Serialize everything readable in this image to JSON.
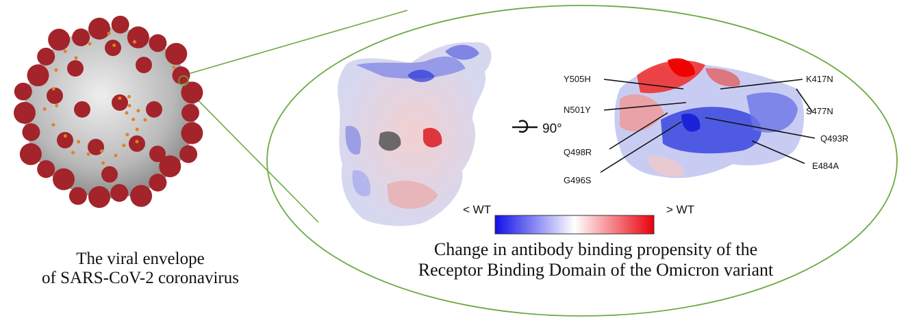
{
  "virus_caption": {
    "line1": "The viral envelope",
    "line2": "of SARS-CoV-2 coronavirus"
  },
  "rotation_label": "90°",
  "mutations": [
    "Y505H",
    "N501Y",
    "Q498R",
    "G496S",
    "K417N",
    "S477N",
    "Q493R",
    "E484A"
  ],
  "colorbar": {
    "low_label": "< WT",
    "high_label": "> WT",
    "colors": [
      "#1010e8",
      "#ffffff",
      "#e8000a"
    ]
  },
  "main_caption": {
    "line1": "Change in antibody binding propensity of the",
    "line2": "Receptor Binding Domain of the Omicron variant"
  },
  "colors": {
    "ellipse_outline": "#6aaa3f",
    "spike": "#a3242a",
    "virus_body": "#c8c8c8"
  }
}
